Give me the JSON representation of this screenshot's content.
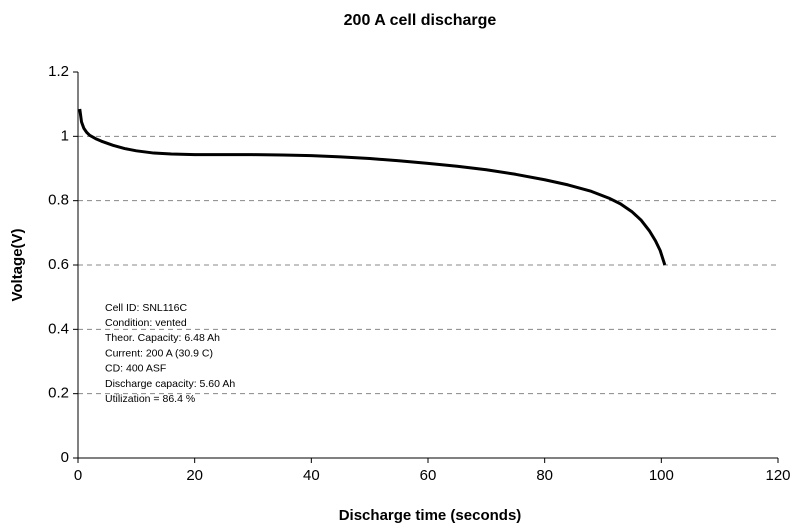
{
  "chart_data": {
    "type": "line",
    "title": "200 A cell discharge",
    "x_label": "Discharge time (seconds)",
    "y_label": "Voltage(V)",
    "x": [
      0.3,
      0.6,
      1,
      1.5,
      2,
      3,
      4,
      6,
      8,
      10,
      13,
      16,
      20,
      25,
      30,
      35,
      40,
      45,
      50,
      55,
      60,
      65,
      70,
      75,
      80,
      84,
      88,
      91,
      93,
      95,
      96.5,
      98,
      99,
      99.8,
      100.6
    ],
    "series": [
      {
        "name": "Voltage",
        "color": "#000000",
        "values": [
          1.085,
          1.045,
          1.025,
          1.012,
          1.003,
          0.993,
          0.985,
          0.972,
          0.962,
          0.955,
          0.948,
          0.945,
          0.943,
          0.943,
          0.943,
          0.942,
          0.94,
          0.936,
          0.931,
          0.924,
          0.916,
          0.907,
          0.896,
          0.882,
          0.865,
          0.849,
          0.829,
          0.808,
          0.79,
          0.765,
          0.74,
          0.705,
          0.675,
          0.645,
          0.6
        ]
      }
    ],
    "xlim": [
      0,
      120
    ],
    "ylim": [
      0,
      1.2
    ],
    "xticks": [
      0,
      20,
      40,
      60,
      80,
      100,
      120
    ],
    "yticks": [
      0,
      0.2,
      0.4,
      0.6,
      0.8,
      1,
      1.2
    ],
    "grid": true,
    "annotations": [
      "Cell ID:  SNL116C",
      "Condition:  vented",
      "Theor. Capacity:  6.48 Ah",
      "Current:  200 A (30.9 C)",
      "CD:  400 ASF",
      "Discharge capacity:  5.60 Ah",
      "Utilization = 86.4 %"
    ]
  }
}
